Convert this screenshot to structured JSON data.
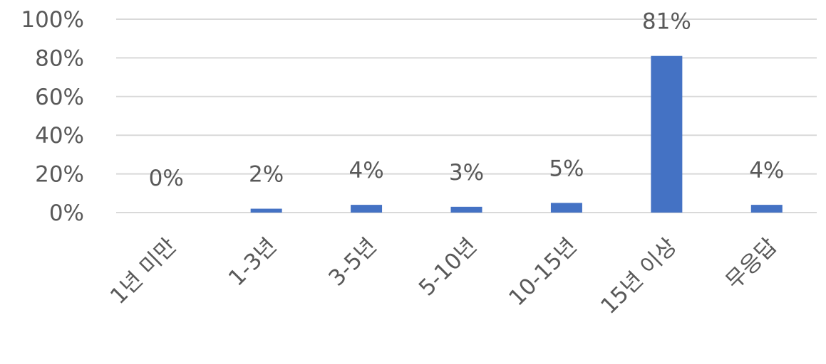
{
  "chart_data": {
    "type": "bar",
    "title": "",
    "xlabel": "",
    "ylabel": "",
    "categories": [
      "1년 미만",
      "1-3년",
      "3-5년",
      "5-10년",
      "10-15년",
      "15년 이상",
      "무응답"
    ],
    "values": [
      0,
      2,
      4,
      3,
      5,
      81,
      4
    ],
    "data_labels": [
      "0%",
      "2%",
      "4%",
      "3%",
      "5%",
      "81%",
      "4%"
    ],
    "ylim": [
      0,
      100
    ],
    "yticks": [
      0,
      20,
      40,
      60,
      80,
      100
    ],
    "ytick_labels": [
      "0%",
      "20%",
      "40%",
      "60%",
      "80%",
      "100%"
    ],
    "grid": true,
    "legend": "none",
    "colors": {
      "bar": "#4472C4",
      "grid": "#D9D9D9",
      "text": "#595959"
    }
  }
}
